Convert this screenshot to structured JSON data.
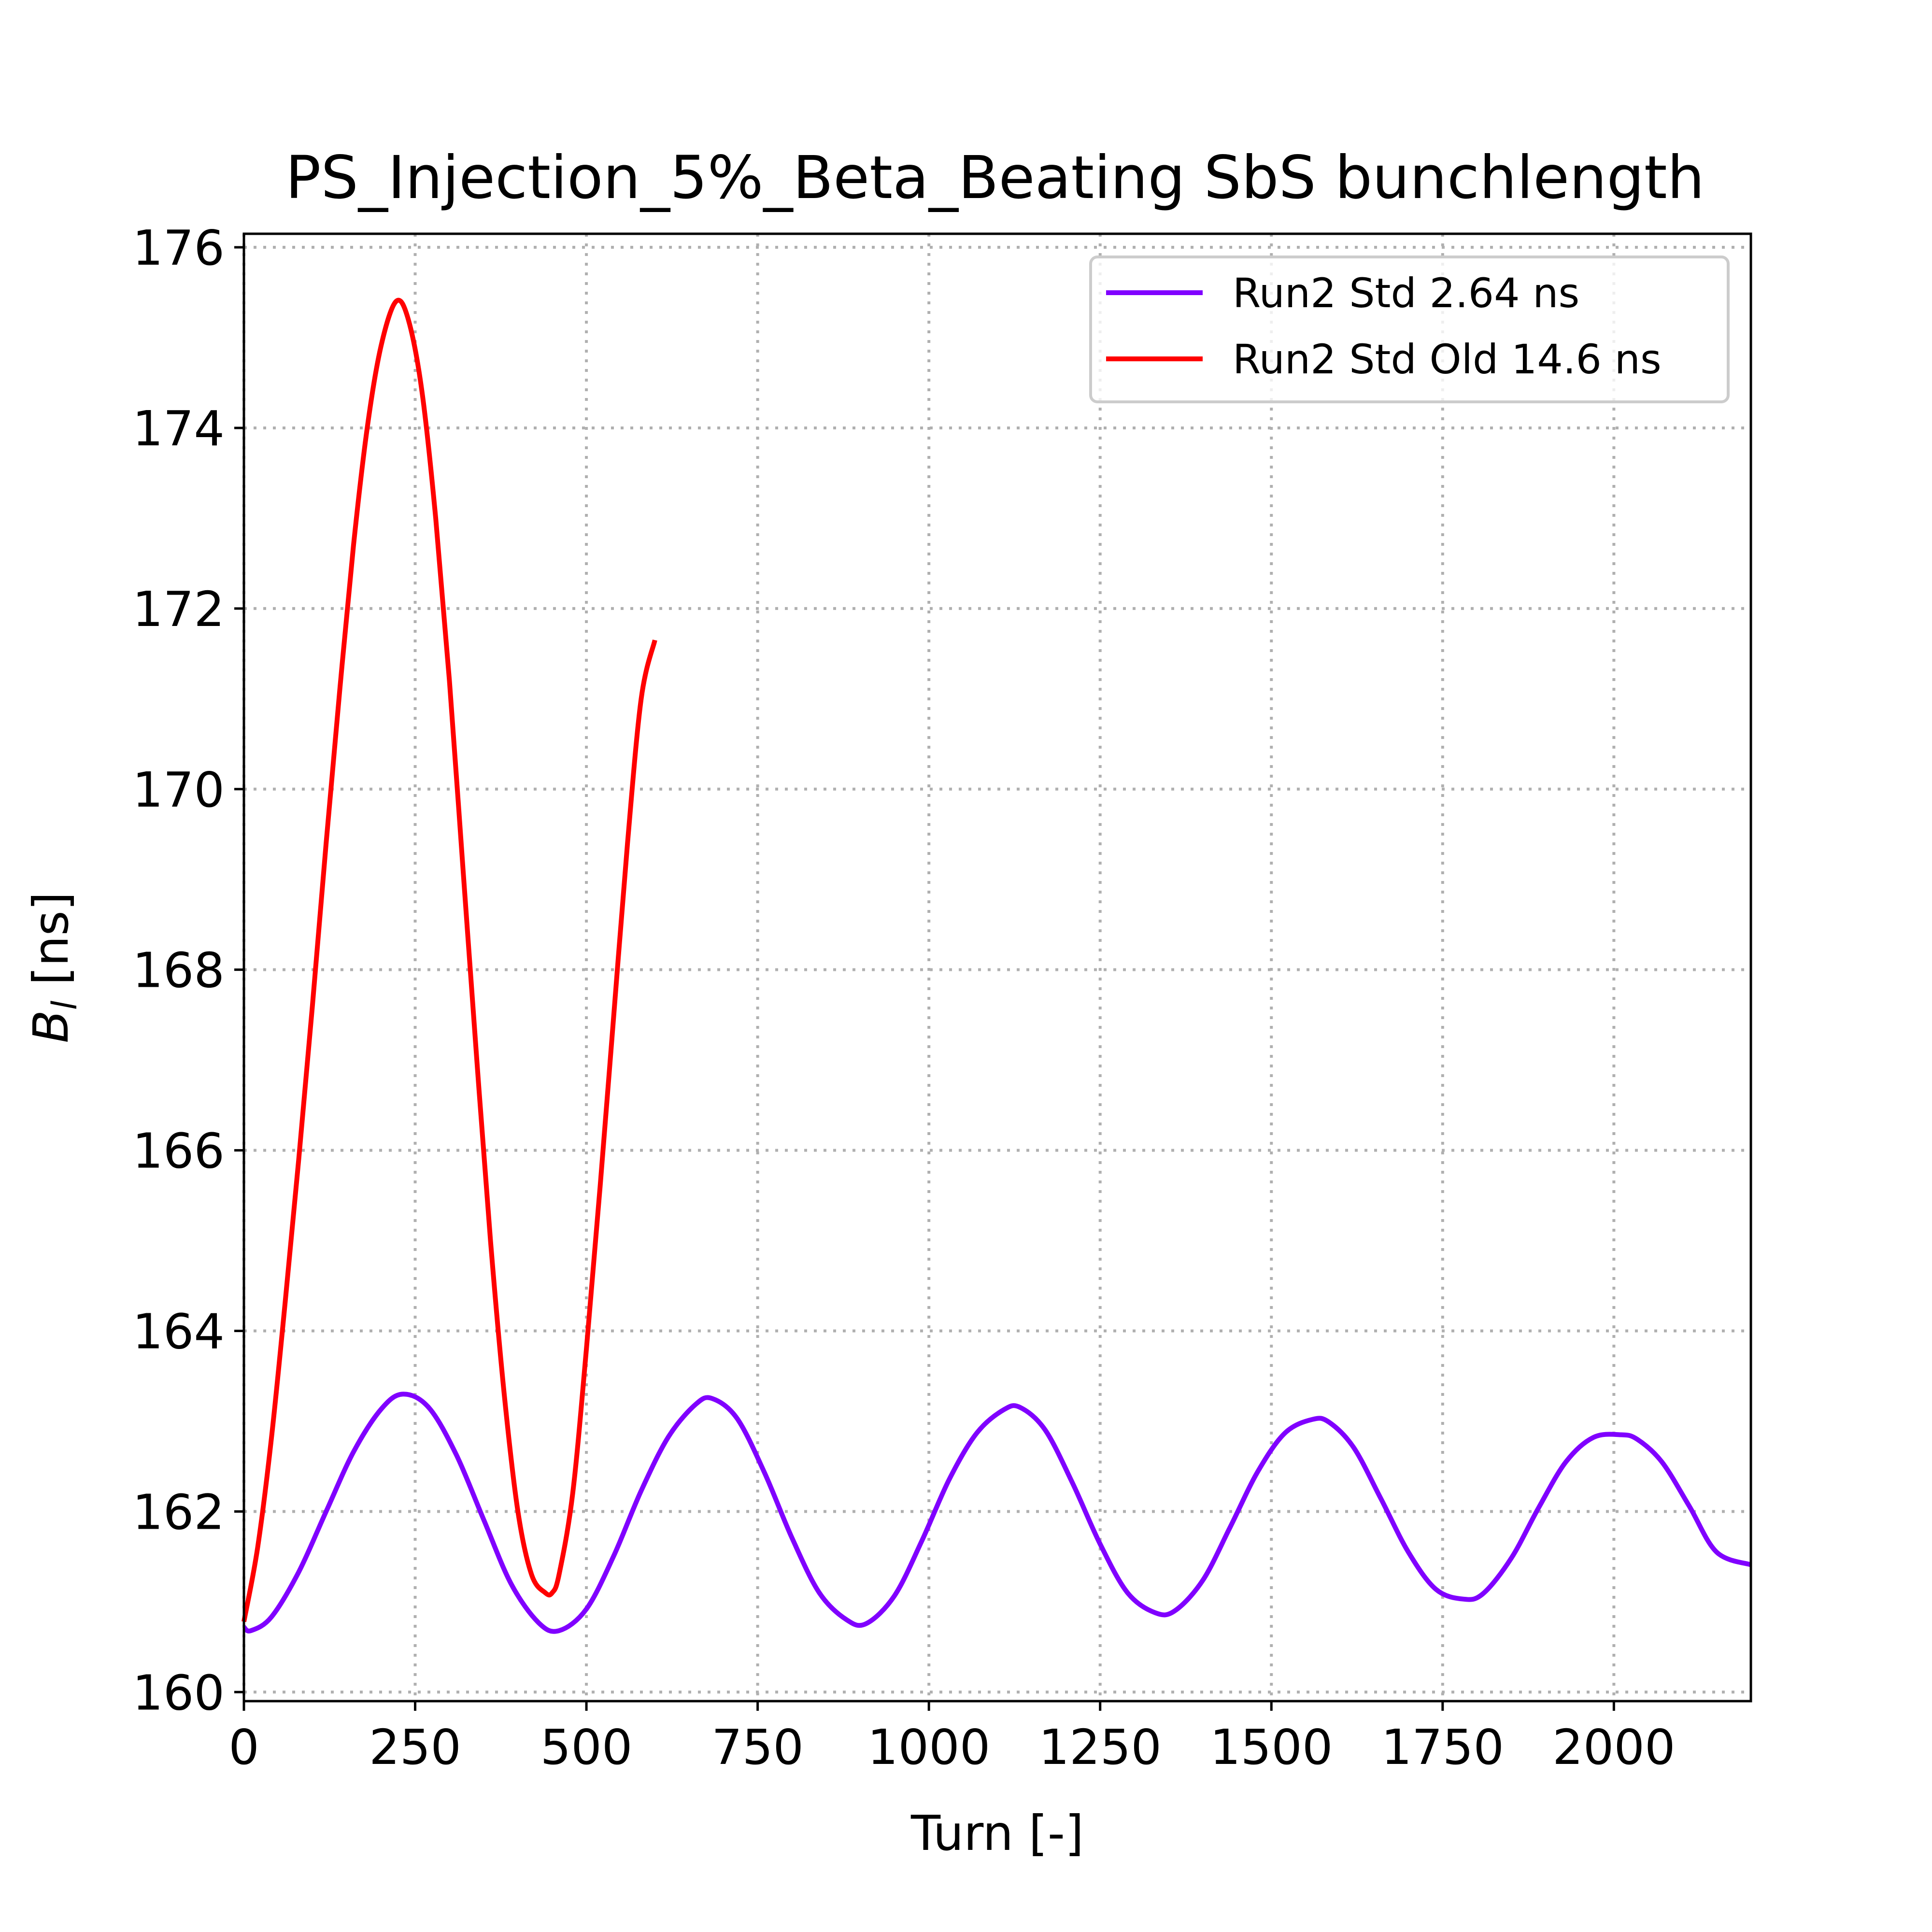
{
  "chart_data": {
    "type": "line",
    "title": "PS_Injection_5%_Beta_Beating SbS bunchlength",
    "xlabel": "Turn [-]",
    "ylabel": "B_l [ns]",
    "ylabel_main": "B",
    "ylabel_sub": "l",
    "ylabel_unit": " [ns]",
    "xlim": [
      0,
      2200
    ],
    "ylim": [
      159.9,
      176.15
    ],
    "xticks": [
      0,
      250,
      500,
      750,
      1000,
      1250,
      1500,
      1750,
      2000
    ],
    "yticks": [
      160,
      162,
      164,
      166,
      168,
      170,
      172,
      174,
      176
    ],
    "grid": true,
    "legend_position": "top-right",
    "series": [
      {
        "name": "Run2 Std 2.64 ns",
        "color": "#8000ff",
        "x": [
          0,
          10,
          40,
          80,
          120,
          160,
          200,
          232,
          270,
          310,
          350,
          390,
          430,
          460,
          500,
          540,
          580,
          620,
          660,
          684,
          720,
          760,
          800,
          840,
          880,
          909,
          950,
          990,
          1030,
          1070,
          1110,
          1134,
          1170,
          1210,
          1250,
          1290,
          1330,
          1359,
          1400,
          1440,
          1480,
          1520,
          1560,
          1584,
          1620,
          1660,
          1700,
          1740,
          1780,
          1809,
          1850,
          1890,
          1930,
          1970,
          2010,
          2034,
          2070,
          2110,
          2150,
          2200
        ],
        "y": [
          160.72,
          160.68,
          160.83,
          161.33,
          162.0,
          162.66,
          163.13,
          163.3,
          163.15,
          162.63,
          161.91,
          161.2,
          160.77,
          160.68,
          160.92,
          161.51,
          162.23,
          162.83,
          163.19,
          163.25,
          163.03,
          162.43,
          161.71,
          161.1,
          160.8,
          160.76,
          161.07,
          161.68,
          162.36,
          162.87,
          163.13,
          163.15,
          162.9,
          162.31,
          161.64,
          161.1,
          160.88,
          160.9,
          161.24,
          161.83,
          162.44,
          162.87,
          163.02,
          162.99,
          162.71,
          162.14,
          161.55,
          161.14,
          161.03,
          161.09,
          161.48,
          162.04,
          162.55,
          162.82,
          162.85,
          162.8,
          162.55,
          162.06,
          161.55,
          161.41
        ]
      },
      {
        "name": "Run2 Std Old 14.6 ns",
        "color": "#ff0000",
        "x": [
          0,
          20,
          40,
          60,
          80,
          100,
          120,
          140,
          160,
          180,
          200,
          222,
          240,
          260,
          280,
          300,
          320,
          340,
          360,
          380,
          400,
          420,
          440,
          450,
          460,
          480,
          500,
          520,
          540,
          560,
          580,
          600
        ],
        "y": [
          160.78,
          161.6,
          162.8,
          164.3,
          165.9,
          167.6,
          169.4,
          171.1,
          172.7,
          174.0,
          174.9,
          175.4,
          175.2,
          174.4,
          173.0,
          171.2,
          169.1,
          167.0,
          165.0,
          163.3,
          162.0,
          161.3,
          161.1,
          161.1,
          161.3,
          162.2,
          163.8,
          165.6,
          167.5,
          169.4,
          171.0,
          171.65
        ]
      }
    ]
  }
}
